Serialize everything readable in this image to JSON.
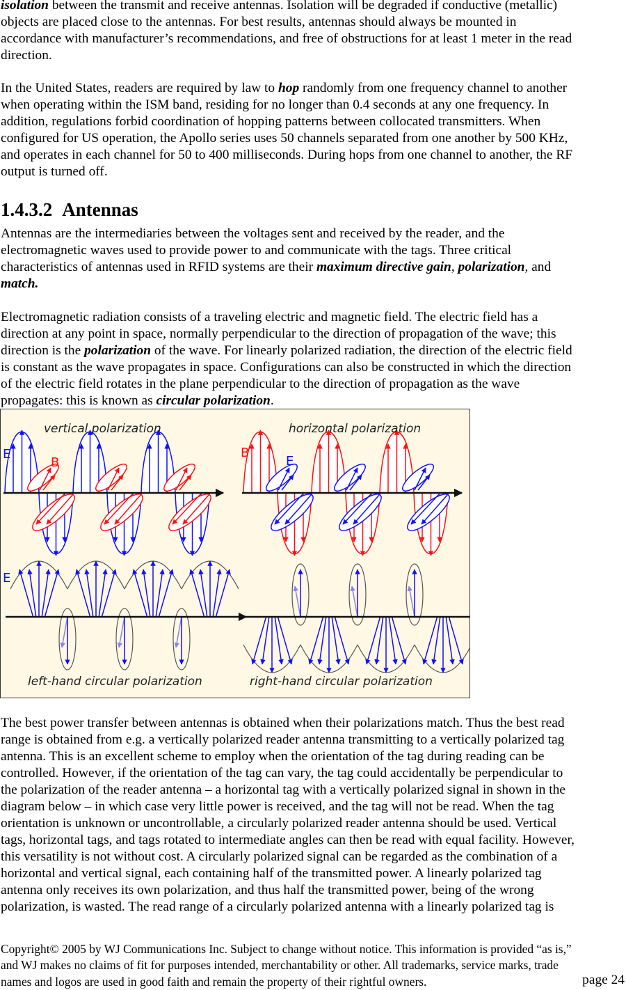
{
  "paragraphs": [
    {
      "lines": [
        [
          {
            "t": "isolation",
            "s": "bi"
          },
          {
            "t": " between the transmit and receive antennas.  Isolation will be degraded if conductive (metallic)"
          }
        ],
        [
          {
            "t": "objects are placed close to the antennas.    For best results, antennas should always be mounted in"
          }
        ],
        [
          {
            "t": "accordance with manufacturer’s recommendations, and free of obstructions for at least 1 meter in the read"
          }
        ],
        [
          {
            "t": "direction."
          }
        ]
      ]
    },
    {
      "lines": [
        [
          {
            "t": "In the United States, readers are required by law to "
          },
          {
            "t": "hop",
            "s": "bi"
          },
          {
            "t": " randomly from one frequency channel to another"
          }
        ],
        [
          {
            "t": "when operating within the ISM band, residing for no longer than 0.4 seconds at any one frequency.  In"
          }
        ],
        [
          {
            "t": "addition, regulations forbid coordination of hopping patterns between collocated transmitters.   When"
          }
        ],
        [
          {
            "t": "configured for US operation, the Apollo series uses 50 channels separated from one another by 500 KHz,"
          }
        ],
        [
          {
            "t": "and operates in each channel for 50 to 400 milliseconds.  During hops from one channel to another, the RF"
          }
        ],
        [
          {
            "t": "output is turned off."
          }
        ]
      ]
    },
    {
      "lines": [
        [
          {
            "t": "Antennas are the intermediaries between the voltages sent and received by the reader, and the"
          }
        ],
        [
          {
            "t": "electromagnetic waves used to provide power to and communicate with the tags.  Three critical"
          }
        ],
        [
          {
            "t": "characteristics of antennas used in RFID systems are their "
          },
          {
            "t": "maximum directive gain",
            "s": "bi"
          },
          {
            "t": ", "
          },
          {
            "t": "polarization",
            "s": "bi"
          },
          {
            "t": ", and"
          }
        ],
        [
          {
            "t": "match.",
            "s": "bi"
          }
        ]
      ]
    },
    {
      "lines": [
        [
          {
            "t": "Electromagnetic radiation consists of a traveling electric and magnetic field.  The electric field has a"
          }
        ],
        [
          {
            "t": "direction at any point in space, normally perpendicular to the direction of propagation of the wave; this"
          }
        ],
        [
          {
            "t": "direction is the "
          },
          {
            "t": "polarization",
            "s": "bi"
          },
          {
            "t": " of the wave.  For linearly polarized radiation, the direction of the electric field"
          }
        ],
        [
          {
            "t": "is constant as the wave propagates in space.  Configurations can also be constructed in which the direction"
          }
        ],
        [
          {
            "t": "of the electric field rotates in the plane perpendicular to the direction of propagation as the wave"
          }
        ],
        [
          {
            "t": "propagates: this is known as "
          },
          {
            "t": "circular polarization",
            "s": "bi"
          },
          {
            "t": "."
          }
        ]
      ]
    },
    {
      "lines": [
        [
          {
            "t": "The best power transfer between antennas is obtained when their polarizations match.  Thus the best read"
          }
        ],
        [
          {
            "t": "range is obtained from e.g. a vertically polarized reader antenna transmitting to a vertically polarized tag"
          }
        ],
        [
          {
            "t": "antenna. This is an excellent scheme to employ when the orientation of the tag during reading can be"
          }
        ],
        [
          {
            "t": "controlled.  However, if the orientation of the tag can vary, the tag could accidentally be perpendicular to"
          }
        ],
        [
          {
            "t": "the polarization of the reader antenna – a horizontal tag with a vertically polarized signal in shown in the"
          }
        ],
        [
          {
            "t": "diagram below – in which case very little power is received, and the tag will not be read.  When the tag"
          }
        ],
        [
          {
            "t": "orientation is unknown or uncontrollable, a circularly polarized reader antenna should be used.  Vertical"
          }
        ],
        [
          {
            "t": "tags, horizontal tags, and tags rotated to intermediate angles can then be read with equal facility.  However,"
          }
        ],
        [
          {
            "t": "this versatility is not without cost.  A circularly polarized signal can be regarded as the combination of a"
          }
        ],
        [
          {
            "t": "horizontal and vertical signal, each containing half of the transmitted power.  A linearly polarized tag"
          }
        ],
        [
          {
            "t": "antenna only receives its own polarization, and thus half the transmitted power, being of the wrong"
          }
        ],
        [
          {
            "t": "polarization, is wasted.  The read range of a circularly polarized antenna with a linearly polarized tag is"
          }
        ]
      ]
    }
  ],
  "heading": {
    "number": "1.4.3.2",
    "title": "Antennas"
  },
  "figure": {
    "labels": {
      "vertical": "vertical polarization",
      "horizontal": "horizontal polarization",
      "left_hand": "left-hand circular polarization",
      "right_hand": "right-hand circular polarization",
      "E": "E",
      "B": "B"
    },
    "colors": {
      "background": "#fff8e5",
      "electric": "#1010ff",
      "magnetic": "#ff1010",
      "axis": "#111111",
      "envelope": "#555555"
    }
  },
  "footer": {
    "lines": [
      "Copyright© 2005 by WJ Communications Inc.  Subject to change without notice.  This information is provided “as is,”",
      "and WJ makes no claims of fit for purposes intended, merchantability or other.  All trademarks, service marks, trade",
      "names and logos are used in good faith and remain the property of their rightful owners."
    ],
    "page": "page 24"
  }
}
